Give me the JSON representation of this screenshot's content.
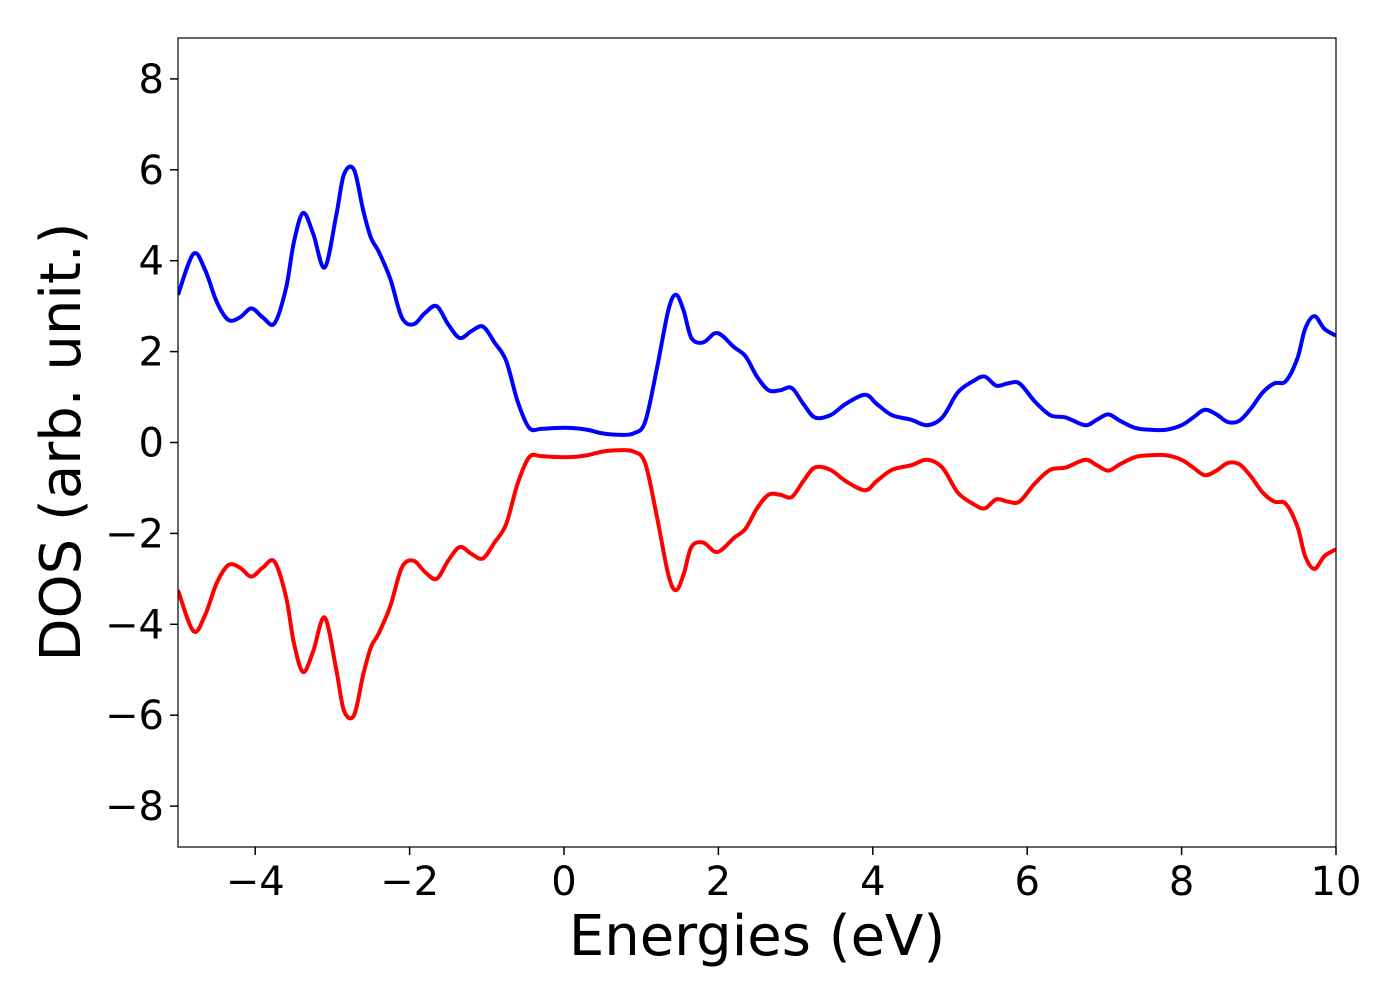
{
  "chart_data": {
    "type": "line",
    "title": "",
    "xlabel": "Energies (eV)",
    "ylabel": "DOS (arb. unit.)",
    "xlim": [
      -5,
      10
    ],
    "ylim": [
      -8.9,
      8.9
    ],
    "x_ticks": [
      -4,
      -2,
      0,
      2,
      4,
      6,
      8,
      10
    ],
    "x_tick_labels": [
      "−4",
      "−2",
      "0",
      "2",
      "4",
      "6",
      "8",
      "10"
    ],
    "y_ticks": [
      -8,
      -6,
      -4,
      -2,
      0,
      2,
      4,
      6,
      8
    ],
    "y_tick_labels": [
      "−8",
      "−6",
      "−4",
      "−2",
      "0",
      "2",
      "4",
      "6",
      "8"
    ],
    "grid": false,
    "legend": "none",
    "series": [
      {
        "color": "#0000ff",
        "x": [
          -5.0,
          -4.8,
          -4.65,
          -4.5,
          -4.35,
          -4.2,
          -4.05,
          -3.9,
          -3.75,
          -3.6,
          -3.5,
          -3.38,
          -3.25,
          -3.1,
          -2.95,
          -2.85,
          -2.72,
          -2.6,
          -2.5,
          -2.4,
          -2.25,
          -2.1,
          -1.95,
          -1.8,
          -1.65,
          -1.5,
          -1.35,
          -1.2,
          -1.05,
          -0.9,
          -0.75,
          -0.6,
          -0.45,
          -0.3,
          -0.1,
          0.1,
          0.3,
          0.5,
          0.7,
          0.9,
          1.05,
          1.2,
          1.35,
          1.45,
          1.55,
          1.65,
          1.8,
          1.95,
          2.05,
          2.2,
          2.35,
          2.5,
          2.65,
          2.8,
          2.95,
          3.1,
          3.25,
          3.45,
          3.65,
          3.9,
          4.05,
          4.25,
          4.5,
          4.7,
          4.9,
          5.1,
          5.3,
          5.45,
          5.6,
          5.75,
          5.9,
          6.1,
          6.3,
          6.5,
          6.75,
          6.9,
          7.05,
          7.2,
          7.4,
          7.6,
          7.8,
          8.0,
          8.15,
          8.3,
          8.45,
          8.6,
          8.75,
          8.9,
          9.05,
          9.2,
          9.35,
          9.5,
          9.6,
          9.72,
          9.85,
          10.0
        ],
        "y": [
          3.25,
          4.15,
          3.8,
          3.1,
          2.7,
          2.75,
          2.95,
          2.75,
          2.62,
          3.4,
          4.4,
          5.05,
          4.6,
          3.85,
          5.0,
          5.9,
          6.0,
          5.1,
          4.5,
          4.2,
          3.6,
          2.75,
          2.6,
          2.85,
          3.0,
          2.6,
          2.3,
          2.45,
          2.55,
          2.2,
          1.8,
          0.9,
          0.32,
          0.3,
          0.32,
          0.32,
          0.28,
          0.2,
          0.17,
          0.2,
          0.45,
          1.6,
          2.9,
          3.25,
          2.9,
          2.3,
          2.2,
          2.4,
          2.35,
          2.1,
          1.9,
          1.45,
          1.15,
          1.15,
          1.2,
          0.85,
          0.55,
          0.6,
          0.85,
          1.05,
          0.85,
          0.6,
          0.5,
          0.38,
          0.55,
          1.1,
          1.35,
          1.45,
          1.25,
          1.3,
          1.3,
          0.9,
          0.6,
          0.55,
          0.38,
          0.5,
          0.62,
          0.48,
          0.32,
          0.28,
          0.28,
          0.38,
          0.55,
          0.72,
          0.62,
          0.45,
          0.48,
          0.75,
          1.1,
          1.3,
          1.35,
          1.85,
          2.5,
          2.78,
          2.5,
          2.35
        ]
      },
      {
        "color": "#ff0000",
        "x": [
          -5.0,
          -4.8,
          -4.65,
          -4.5,
          -4.35,
          -4.2,
          -4.05,
          -3.9,
          -3.75,
          -3.6,
          -3.5,
          -3.38,
          -3.25,
          -3.1,
          -2.95,
          -2.85,
          -2.72,
          -2.6,
          -2.5,
          -2.4,
          -2.25,
          -2.1,
          -1.95,
          -1.8,
          -1.65,
          -1.5,
          -1.35,
          -1.2,
          -1.05,
          -0.9,
          -0.75,
          -0.6,
          -0.45,
          -0.3,
          -0.1,
          0.1,
          0.3,
          0.5,
          0.7,
          0.9,
          1.05,
          1.2,
          1.35,
          1.45,
          1.55,
          1.65,
          1.8,
          1.95,
          2.05,
          2.2,
          2.35,
          2.5,
          2.65,
          2.8,
          2.95,
          3.1,
          3.25,
          3.45,
          3.65,
          3.9,
          4.05,
          4.25,
          4.5,
          4.7,
          4.9,
          5.1,
          5.3,
          5.45,
          5.6,
          5.75,
          5.9,
          6.1,
          6.3,
          6.5,
          6.75,
          6.9,
          7.05,
          7.2,
          7.4,
          7.6,
          7.8,
          8.0,
          8.15,
          8.3,
          8.45,
          8.6,
          8.75,
          8.9,
          9.05,
          9.2,
          9.35,
          9.5,
          9.6,
          9.72,
          9.85,
          10.0
        ],
        "y": [
          -3.25,
          -4.15,
          -3.8,
          -3.1,
          -2.7,
          -2.75,
          -2.95,
          -2.75,
          -2.62,
          -3.4,
          -4.4,
          -5.05,
          -4.6,
          -3.85,
          -5.0,
          -5.9,
          -6.0,
          -5.1,
          -4.5,
          -4.2,
          -3.6,
          -2.75,
          -2.6,
          -2.85,
          -3.0,
          -2.6,
          -2.3,
          -2.45,
          -2.55,
          -2.2,
          -1.8,
          -0.9,
          -0.32,
          -0.3,
          -0.32,
          -0.32,
          -0.28,
          -0.2,
          -0.17,
          -0.2,
          -0.45,
          -1.6,
          -2.9,
          -3.25,
          -2.9,
          -2.3,
          -2.2,
          -2.4,
          -2.35,
          -2.1,
          -1.9,
          -1.45,
          -1.15,
          -1.15,
          -1.2,
          -0.85,
          -0.55,
          -0.6,
          -0.85,
          -1.05,
          -0.85,
          -0.6,
          -0.5,
          -0.38,
          -0.55,
          -1.1,
          -1.35,
          -1.45,
          -1.25,
          -1.3,
          -1.3,
          -0.9,
          -0.6,
          -0.55,
          -0.38,
          -0.5,
          -0.62,
          -0.48,
          -0.32,
          -0.28,
          -0.28,
          -0.38,
          -0.55,
          -0.72,
          -0.62,
          -0.45,
          -0.48,
          -0.75,
          -1.1,
          -1.3,
          -1.35,
          -1.85,
          -2.5,
          -2.78,
          -2.5,
          -2.35
        ]
      }
    ]
  }
}
